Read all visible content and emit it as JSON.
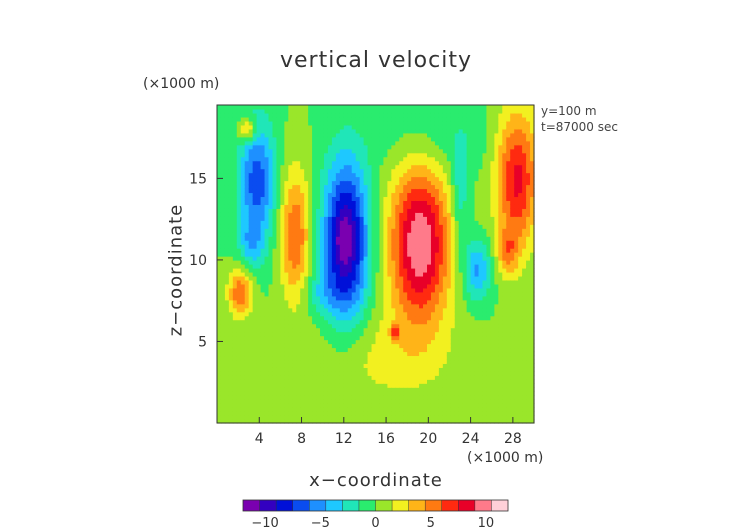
{
  "chart_data": {
    "type": "heatmap",
    "title": "vertical velocity",
    "xlabel": "x−coordinate",
    "ylabel": "z−coordinate",
    "x_unit": "(×1000 m)",
    "z_unit": "(×1000 m)",
    "annotations": [
      "y=100 m",
      "t=87000 sec"
    ],
    "xlim": [
      0,
      30
    ],
    "ylim": [
      0,
      19.5
    ],
    "xticks": [
      "4",
      "8",
      "12",
      "16",
      "20",
      "24",
      "28"
    ],
    "xtick_values": [
      4,
      8,
      12,
      16,
      20,
      24,
      28
    ],
    "yticks": [
      "5",
      "10",
      "15"
    ],
    "ytick_values": [
      5,
      10,
      15
    ],
    "colorbar": {
      "range": [
        -12,
        12
      ],
      "ticks": [
        "−10",
        "−5",
        "0",
        "5",
        "10"
      ],
      "tick_values": [
        -10,
        -5,
        0,
        5,
        10
      ]
    },
    "features": [
      {
        "x": 3.8,
        "z": 14.8,
        "sx": 1.2,
        "sz": 2.6,
        "value": -7
      },
      {
        "x": 3.2,
        "z": 11.0,
        "sx": 0.8,
        "sz": 1.0,
        "value": -3
      },
      {
        "x": 7.4,
        "z": 11.5,
        "sx": 1.0,
        "sz": 2.8,
        "value": 6
      },
      {
        "x": 2.2,
        "z": 8.0,
        "sx": 0.8,
        "sz": 1.0,
        "value": 6
      },
      {
        "x": 12.2,
        "z": 11.2,
        "sx": 1.5,
        "sz": 3.4,
        "value": -11
      },
      {
        "x": 12.0,
        "z": 11.2,
        "sx": 0.3,
        "sz": 0.6,
        "value": -6
      },
      {
        "x": 19.2,
        "z": 11.0,
        "sx": 2.0,
        "sz": 3.4,
        "value": 10.5
      },
      {
        "x": 28.4,
        "z": 15.0,
        "sx": 1.4,
        "sz": 3.0,
        "value": 8
      },
      {
        "x": 23.0,
        "z": 14.0,
        "sx": 0.6,
        "sz": 2.2,
        "value": -3
      },
      {
        "x": 24.6,
        "z": 9.4,
        "sx": 0.9,
        "sz": 1.3,
        "value": -5
      },
      {
        "x": 2.9,
        "z": 18.0,
        "sx": 0.6,
        "sz": 0.5,
        "value": 5
      },
      {
        "x": 16.9,
        "z": 5.6,
        "sx": 0.3,
        "sz": 0.3,
        "value": 5
      },
      {
        "x": 27.5,
        "z": 10.5,
        "sx": 0.7,
        "sz": 1.0,
        "value": 4
      },
      {
        "x": 9.8,
        "z": 8.0,
        "sx": 1.4,
        "sz": 0.9,
        "value": -2
      },
      {
        "x": 15.5,
        "z": 4.0,
        "sx": 5.0,
        "sz": 2.0,
        "value": 2
      },
      {
        "x": 20.5,
        "z": 17.5,
        "sx": 4.0,
        "sz": 1.6,
        "value": -1.5
      }
    ],
    "grid": false,
    "legend": "bottom"
  },
  "colors": {
    "scale": [
      "#7a00b0",
      "#3300c0",
      "#0010d8",
      "#0a4cf0",
      "#1e90ff",
      "#1ec8ff",
      "#20e6b8",
      "#2aec6e",
      "#9ae62a",
      "#f2f020",
      "#ffb418",
      "#ff7a12",
      "#ff2a10",
      "#e80028",
      "#ff7a8a",
      "#ffd0d8"
    ],
    "background": "#2ce070"
  }
}
